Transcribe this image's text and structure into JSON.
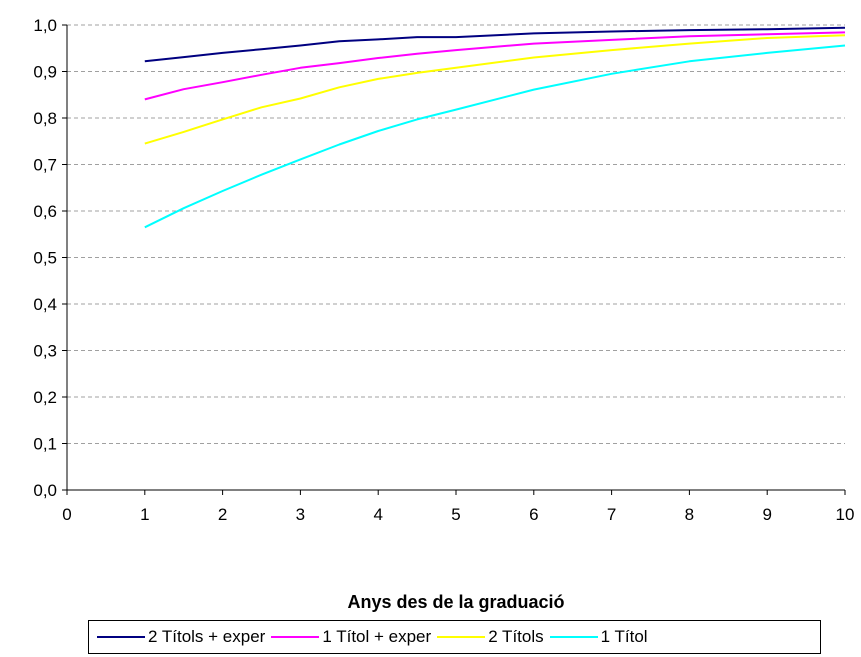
{
  "chart_data": {
    "type": "line",
    "title": "",
    "xlabel": "Anys des de la graduació",
    "ylabel": "",
    "xlim": [
      0,
      10
    ],
    "ylim": [
      0,
      1.0
    ],
    "x_ticks": [
      0,
      1,
      2,
      3,
      4,
      5,
      6,
      7,
      8,
      9,
      10
    ],
    "x_tick_labels": [
      "0",
      "1",
      "2",
      "3",
      "4",
      "5",
      "6",
      "7",
      "8",
      "9",
      "10"
    ],
    "y_ticks": [
      0,
      0.1,
      0.2,
      0.3,
      0.4,
      0.5,
      0.6,
      0.7,
      0.8,
      0.9,
      1.0
    ],
    "y_tick_labels": [
      "0,0",
      "0,1",
      "0,2",
      "0,3",
      "0,4",
      "0,5",
      "0,6",
      "0,7",
      "0,8",
      "0,9",
      "1,0"
    ],
    "grid": "horizontal dashed",
    "legend_position": "bottom",
    "series": [
      {
        "name": "2 Títols + exper",
        "color": "#000080",
        "x": [
          1,
          1.5,
          2,
          2.5,
          3,
          3.5,
          4,
          4.5,
          5,
          6,
          7,
          8,
          9,
          10
        ],
        "y": [
          0.922,
          0.931,
          0.94,
          0.948,
          0.956,
          0.965,
          0.969,
          0.974,
          0.974,
          0.982,
          0.986,
          0.989,
          0.991,
          0.994
        ]
      },
      {
        "name": "1 Títol + exper",
        "color": "#ff00ff",
        "x": [
          1,
          1.5,
          2,
          2.5,
          3,
          3.5,
          4,
          4.5,
          5,
          6,
          7,
          8,
          9,
          10
        ],
        "y": [
          0.84,
          0.862,
          0.877,
          0.893,
          0.908,
          0.918,
          0.929,
          0.938,
          0.946,
          0.96,
          0.968,
          0.976,
          0.98,
          0.984
        ]
      },
      {
        "name": "2 Títols",
        "color": "#ffff00",
        "x": [
          1,
          1.5,
          2,
          2.5,
          3,
          3.5,
          4,
          4.5,
          5,
          6,
          7,
          8,
          9,
          10
        ],
        "y": [
          0.745,
          0.77,
          0.797,
          0.823,
          0.842,
          0.866,
          0.884,
          0.897,
          0.908,
          0.93,
          0.946,
          0.96,
          0.972,
          0.978
        ]
      },
      {
        "name": "1 Títol",
        "color": "#00ffff",
        "x": [
          1,
          1.5,
          2,
          2.5,
          3,
          3.5,
          4,
          4.5,
          5,
          6,
          7,
          8,
          9,
          10
        ],
        "y": [
          0.565,
          0.606,
          0.643,
          0.678,
          0.711,
          0.743,
          0.772,
          0.797,
          0.818,
          0.861,
          0.895,
          0.922,
          0.94,
          0.956
        ]
      }
    ]
  }
}
